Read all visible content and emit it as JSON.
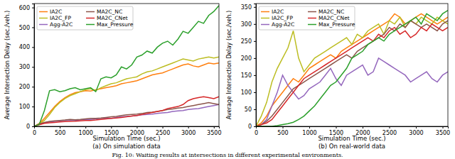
{
  "caption": "Fig. 10: Waiting results at intersections in different experimental environments.",
  "chart_data": [
    {
      "type": "line",
      "title": "(a) On simulation data",
      "x_label": "Simulation Time (sec.)",
      "y_label": "Average Intersection Delay (sec./veh.)",
      "xlim": [
        0,
        3600
      ],
      "xticks": [
        0,
        500,
        1000,
        1500,
        2000,
        2500,
        3000,
        3500
      ],
      "ylim": [
        0,
        620
      ],
      "yticks": [
        0,
        100,
        200,
        300,
        400,
        500,
        600
      ],
      "grid": false,
      "legend": "upper left",
      "x": [
        0,
        100,
        200,
        300,
        400,
        500,
        600,
        700,
        800,
        900,
        1000,
        1100,
        1200,
        1300,
        1400,
        1500,
        1600,
        1700,
        1800,
        1900,
        2000,
        2100,
        2200,
        2300,
        2400,
        2500,
        2600,
        2700,
        2800,
        2900,
        3000,
        3100,
        3200,
        3300,
        3400,
        3500,
        3600
      ],
      "series": [
        {
          "name": "IA2C",
          "color": "#ff7f0e",
          "values": [
            0,
            15,
            40,
            70,
            100,
            125,
            145,
            160,
            170,
            175,
            180,
            178,
            185,
            190,
            195,
            200,
            205,
            215,
            220,
            225,
            230,
            240,
            250,
            260,
            265,
            270,
            280,
            290,
            300,
            310,
            315,
            305,
            300,
            310,
            320,
            315,
            320
          ]
        },
        {
          "name": "IA2C_FP",
          "color": "#bcbd22",
          "values": [
            0,
            10,
            30,
            60,
            95,
            120,
            140,
            155,
            165,
            175,
            185,
            190,
            180,
            195,
            205,
            215,
            220,
            230,
            240,
            245,
            250,
            265,
            275,
            280,
            290,
            300,
            310,
            320,
            330,
            340,
            335,
            330,
            340,
            345,
            350,
            345,
            350
          ]
        },
        {
          "name": "Agg-A2C",
          "color": "#9467bd",
          "values": [
            0,
            10,
            18,
            22,
            25,
            28,
            30,
            32,
            30,
            33,
            35,
            35,
            38,
            40,
            42,
            40,
            45,
            48,
            50,
            52,
            55,
            58,
            60,
            62,
            65,
            68,
            70,
            75,
            78,
            80,
            85,
            88,
            90,
            95,
            100,
            105,
            110
          ]
        },
        {
          "name": "MA2C_NC",
          "color": "#8c564b",
          "values": [
            0,
            12,
            20,
            25,
            28,
            30,
            32,
            35,
            33,
            35,
            38,
            40,
            40,
            42,
            45,
            48,
            50,
            55,
            58,
            60,
            62,
            65,
            70,
            72,
            75,
            80,
            85,
            88,
            92,
            95,
            100,
            105,
            110,
            115,
            120,
            115,
            110
          ]
        },
        {
          "name": "MA2C_CNet",
          "color": "#d62728",
          "values": [
            0,
            8,
            15,
            18,
            20,
            22,
            24,
            25,
            26,
            28,
            30,
            30,
            32,
            35,
            38,
            40,
            42,
            45,
            48,
            52,
            55,
            60,
            65,
            70,
            75,
            80,
            90,
            95,
            100,
            110,
            130,
            140,
            145,
            150,
            145,
            140,
            150
          ]
        },
        {
          "name": "Max_Pressure",
          "color": "#2ca02c",
          "values": [
            0,
            10,
            80,
            180,
            185,
            175,
            180,
            190,
            195,
            185,
            190,
            195,
            175,
            240,
            250,
            245,
            260,
            300,
            290,
            310,
            350,
            360,
            380,
            370,
            400,
            420,
            430,
            410,
            440,
            480,
            470,
            500,
            530,
            520,
            560,
            580,
            610
          ]
        }
      ]
    },
    {
      "type": "line",
      "title": "(b) On real-world data",
      "x_label": "Simulation Time (sec.)",
      "y_label": "Average Intersection Delay (sec./veh.)",
      "xlim": [
        0,
        3600
      ],
      "xticks": [
        0,
        500,
        1000,
        1500,
        2000,
        2500,
        3000,
        3500
      ],
      "ylim": [
        0,
        360
      ],
      "yticks": [
        0,
        50,
        100,
        150,
        200,
        250,
        300,
        350
      ],
      "grid": false,
      "legend": "upper left",
      "x": [
        0,
        100,
        200,
        300,
        400,
        500,
        600,
        700,
        800,
        900,
        1000,
        1100,
        1200,
        1300,
        1400,
        1500,
        1600,
        1700,
        1800,
        1900,
        2000,
        2100,
        2200,
        2300,
        2400,
        2500,
        2600,
        2700,
        2800,
        2900,
        3000,
        3100,
        3200,
        3300,
        3400,
        3500,
        3600
      ],
      "series": [
        {
          "name": "IA2C",
          "color": "#ff7f0e",
          "values": [
            0,
            10,
            30,
            60,
            80,
            100,
            120,
            140,
            130,
            150,
            170,
            180,
            190,
            200,
            210,
            200,
            220,
            230,
            240,
            250,
            260,
            270,
            280,
            290,
            300,
            310,
            330,
            320,
            300,
            310,
            320,
            330,
            320,
            310,
            300,
            310,
            320
          ]
        },
        {
          "name": "IA2C_FP",
          "color": "#bcbd22",
          "values": [
            0,
            30,
            70,
            130,
            170,
            200,
            230,
            280,
            200,
            160,
            180,
            200,
            210,
            220,
            230,
            240,
            250,
            260,
            240,
            270,
            260,
            280,
            290,
            300,
            270,
            310,
            300,
            320,
            290,
            310,
            300,
            320,
            310,
            300,
            320,
            310,
            300
          ]
        },
        {
          "name": "Agg-A2C",
          "color": "#9467bd",
          "values": [
            0,
            5,
            20,
            60,
            100,
            150,
            120,
            100,
            80,
            90,
            110,
            120,
            130,
            150,
            170,
            140,
            120,
            150,
            160,
            170,
            180,
            150,
            160,
            200,
            190,
            180,
            170,
            160,
            150,
            130,
            140,
            150,
            160,
            140,
            130,
            150,
            160
          ]
        },
        {
          "name": "MA2C_NC",
          "color": "#8c564b",
          "values": [
            0,
            5,
            15,
            30,
            50,
            70,
            90,
            110,
            120,
            130,
            140,
            150,
            160,
            170,
            180,
            190,
            200,
            210,
            200,
            220,
            230,
            240,
            250,
            260,
            270,
            290,
            280,
            300,
            290,
            310,
            300,
            290,
            300,
            290,
            280,
            300,
            310
          ]
        },
        {
          "name": "MA2C_CNet",
          "color": "#d62728",
          "values": [
            0,
            5,
            10,
            20,
            40,
            60,
            80,
            100,
            120,
            140,
            150,
            160,
            170,
            180,
            190,
            200,
            210,
            220,
            230,
            240,
            250,
            260,
            250,
            270,
            260,
            280,
            290,
            270,
            280,
            260,
            270,
            290,
            280,
            300,
            290,
            280,
            290
          ]
        },
        {
          "name": "Max_Pressure",
          "color": "#2ca02c",
          "values": [
            0,
            0,
            0,
            0,
            2,
            5,
            8,
            12,
            20,
            30,
            45,
            60,
            80,
            100,
            120,
            130,
            150,
            170,
            200,
            210,
            220,
            240,
            250,
            260,
            250,
            270,
            280,
            290,
            300,
            310,
            320,
            300,
            330,
            320,
            310,
            330,
            340
          ]
        }
      ]
    }
  ]
}
